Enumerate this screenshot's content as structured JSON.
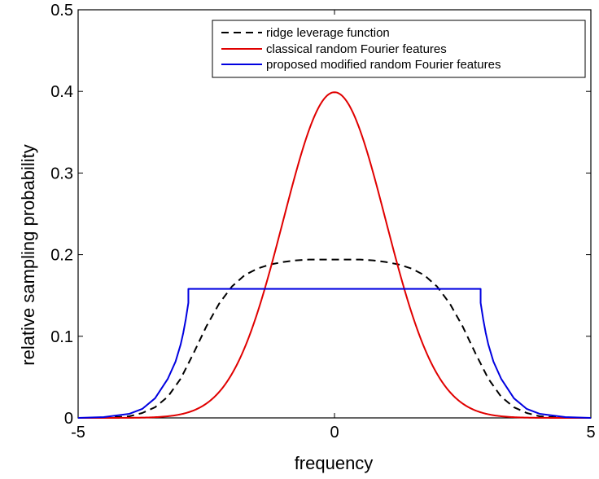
{
  "chart_data": {
    "type": "line",
    "title": "",
    "xlabel": "frequency",
    "ylabel": "relative sampling probability",
    "xlim": [
      -5,
      5
    ],
    "ylim": [
      0,
      0.5
    ],
    "x_ticks": [
      "-5",
      "0",
      "5"
    ],
    "y_ticks": [
      "0",
      "0.1",
      "0.2",
      "0.3",
      "0.4",
      "0.5"
    ],
    "grid": false,
    "legend_position": "top-right",
    "series": [
      {
        "name": "ridge leverage function",
        "color": "#000000",
        "style": "dashed",
        "x": [
          -5,
          -4.5,
          -4,
          -3.75,
          -3.5,
          -3.25,
          -3,
          -2.75,
          -2.5,
          -2.25,
          -2,
          -1.75,
          -1.5,
          -1.25,
          -1,
          -0.75,
          -0.5,
          -0.25,
          0,
          0.25,
          0.5,
          0.75,
          1,
          1.25,
          1.5,
          1.75,
          2,
          2.25,
          2.5,
          2.75,
          3,
          3.25,
          3.5,
          3.75,
          4,
          4.5,
          5
        ],
        "y": [
          0.0,
          0.0,
          0.002,
          0.006,
          0.013,
          0.026,
          0.048,
          0.079,
          0.112,
          0.14,
          0.161,
          0.175,
          0.183,
          0.188,
          0.191,
          0.193,
          0.194,
          0.194,
          0.194,
          0.194,
          0.194,
          0.193,
          0.191,
          0.188,
          0.183,
          0.175,
          0.161,
          0.14,
          0.112,
          0.079,
          0.048,
          0.026,
          0.013,
          0.006,
          0.002,
          0.0,
          0.0
        ]
      },
      {
        "name": "classical random Fourier features",
        "color": "#e00000",
        "style": "solid",
        "function": "gaussian",
        "mean": 0,
        "std": 1,
        "peak": 0.399
      },
      {
        "name": "proposed modified random Fourier features",
        "color": "#0000e0",
        "style": "solid",
        "x": [
          -5,
          -4.5,
          -4,
          -3.75,
          -3.5,
          -3.25,
          -3.1,
          -3.0,
          -2.95,
          -2.9,
          -2.85,
          -2.85,
          2.85,
          2.85,
          2.9,
          2.95,
          3.0,
          3.1,
          3.25,
          3.5,
          3.75,
          4,
          4.5,
          5
        ],
        "y": [
          0.0,
          0.001,
          0.005,
          0.011,
          0.024,
          0.048,
          0.069,
          0.09,
          0.104,
          0.121,
          0.141,
          0.158,
          0.158,
          0.141,
          0.121,
          0.104,
          0.09,
          0.069,
          0.048,
          0.024,
          0.011,
          0.005,
          0.001,
          0.0
        ]
      }
    ]
  }
}
